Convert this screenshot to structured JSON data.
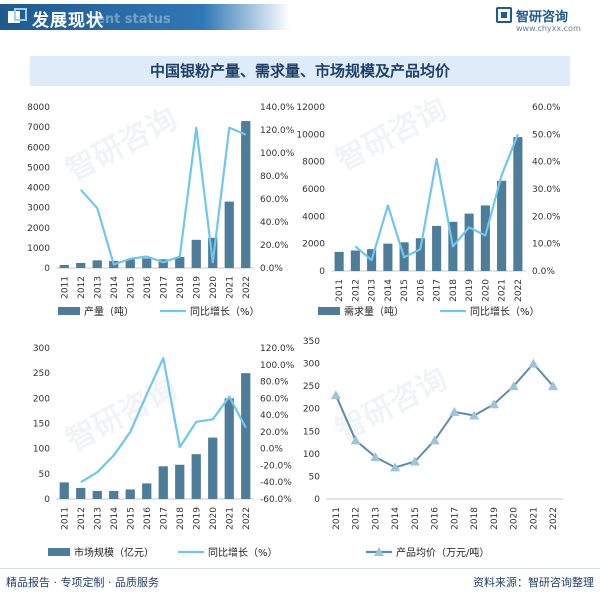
{
  "header": {
    "title": "发展现状",
    "subtitle": "ent status"
  },
  "brand": {
    "name": "智研咨询",
    "url": "www.chyxx.com"
  },
  "main_title": "中国银粉产量、需求量、市场规模及产品均价",
  "footer": {
    "left": "精品报告 · 专项定制 · 品质服务",
    "right": "资料来源：智研咨询整理"
  },
  "watermark": "智研咨询",
  "colors": {
    "bar": "#4e7d99",
    "line": "#6ec7ee",
    "price": "#5d8ea6"
  },
  "chart_data": [
    {
      "type": "bar",
      "categories": [
        "2011",
        "2012",
        "2013",
        "2014",
        "2015",
        "2016",
        "2017",
        "2018",
        "2019",
        "2020",
        "2021",
        "2022"
      ],
      "series": [
        {
          "name": "产量（吨）",
          "type": "bar",
          "axis": "left",
          "values": [
            150,
            250,
            380,
            350,
            430,
            480,
            430,
            550,
            1400,
            1500,
            3300,
            7300
          ]
        },
        {
          "name": "同比增长（%）",
          "type": "line",
          "axis": "right",
          "values": [
            null,
            68,
            52,
            3,
            8,
            10,
            5,
            10,
            122,
            5,
            122,
            116
          ]
        }
      ],
      "ylim": [
        0,
        8000
      ],
      "yticks": [
        0,
        1000,
        2000,
        3000,
        4000,
        5000,
        6000,
        7000,
        8000
      ],
      "y2lim": [
        0,
        140
      ],
      "y2ticks": [
        "0.0%",
        "20.0%",
        "40.0%",
        "60.0%",
        "80.0%",
        "100.0%",
        "120.0%",
        "140.0%"
      ]
    },
    {
      "type": "bar",
      "categories": [
        "2011",
        "2012",
        "2013",
        "2014",
        "2015",
        "2016",
        "2017",
        "2018",
        "2019",
        "2020",
        "2021",
        "2022"
      ],
      "series": [
        {
          "name": "需求量（吨）",
          "type": "bar",
          "axis": "left",
          "values": [
            1400,
            1500,
            1600,
            2000,
            2100,
            2400,
            3300,
            3600,
            4200,
            4800,
            6600,
            9800
          ]
        },
        {
          "name": "同比增长（%）",
          "type": "line",
          "axis": "right",
          "values": [
            null,
            9,
            4,
            24,
            5,
            8,
            41,
            9,
            16,
            13,
            35,
            50
          ]
        }
      ],
      "ylim": [
        0,
        12000
      ],
      "yticks": [
        0,
        2000,
        4000,
        6000,
        8000,
        10000,
        12000
      ],
      "y2lim": [
        0,
        60
      ],
      "y2ticks": [
        "0.0%",
        "10.0%",
        "20.0%",
        "30.0%",
        "40.0%",
        "50.0%",
        "60.0%"
      ]
    },
    {
      "type": "bar",
      "categories": [
        "2011",
        "2012",
        "2013",
        "2014",
        "2015",
        "2016",
        "2017",
        "2018",
        "2019",
        "2020",
        "2021",
        "2022"
      ],
      "series": [
        {
          "name": "市场规模（亿元）",
          "type": "bar",
          "axis": "left",
          "values": [
            33,
            22,
            16,
            16,
            19,
            31,
            65,
            68,
            89,
            122,
            200,
            250
          ]
        },
        {
          "name": "同比增长（%）",
          "type": "line",
          "axis": "right",
          "values": [
            null,
            -40,
            -28,
            -8,
            20,
            65,
            108,
            2,
            32,
            35,
            62,
            25
          ]
        }
      ],
      "ylim": [
        0,
        300
      ],
      "yticks": [
        0,
        50,
        100,
        150,
        200,
        250,
        300
      ],
      "y2lim": [
        -60,
        120
      ],
      "y2ticks": [
        "-60.0%",
        "-40.0%",
        "-20.0%",
        "0.0%",
        "20.0%",
        "40.0%",
        "60.0%",
        "80.0%",
        "100.0%",
        "120.0%"
      ]
    },
    {
      "type": "line",
      "categories": [
        "2011",
        "2012",
        "2013",
        "2014",
        "2015",
        "2016",
        "2017",
        "2018",
        "2019",
        "2020",
        "2021",
        "2022"
      ],
      "series": [
        {
          "name": "产品均价（万元/吨）",
          "type": "line",
          "axis": "left",
          "values": [
            230,
            130,
            93,
            70,
            83,
            130,
            193,
            185,
            210,
            250,
            300,
            250
          ]
        }
      ],
      "ylim": [
        0,
        350
      ],
      "yticks": [
        0,
        50,
        100,
        150,
        200,
        250,
        300,
        350
      ]
    }
  ]
}
